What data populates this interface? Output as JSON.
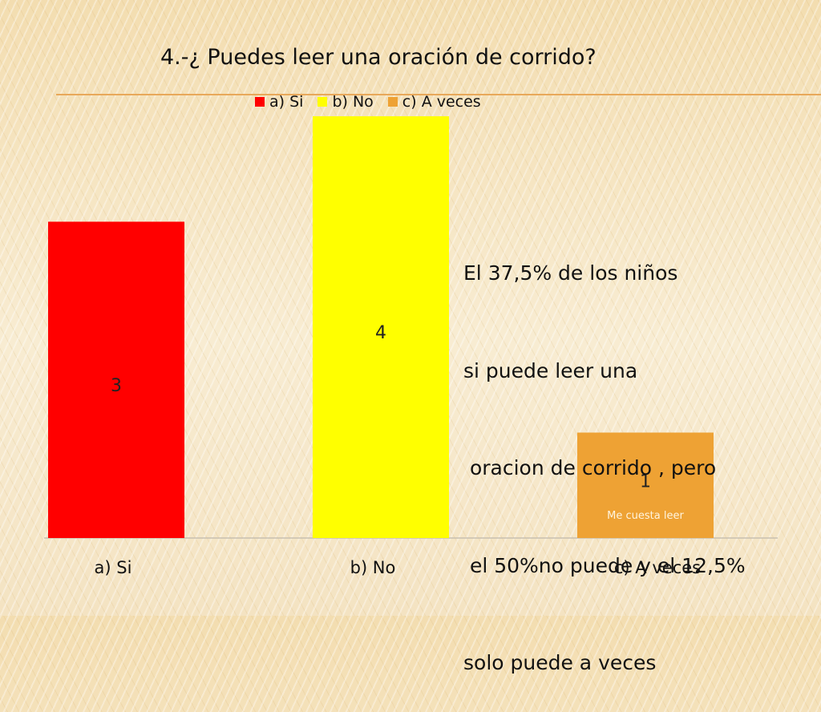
{
  "chart_data": {
    "type": "bar",
    "title": "4.-¿ Puedes leer una oración de corrido?",
    "categories": [
      "a) Si",
      "b) No",
      "c) A veces"
    ],
    "values": [
      3,
      4,
      1
    ],
    "colors": [
      "#ff0000",
      "#ffff00",
      "#eea234"
    ],
    "legend_position": "top",
    "legend": [
      "a) Si",
      "b) No",
      "c) A veces"
    ],
    "ylim": [
      0,
      4
    ],
    "grid": false,
    "data_labels": [
      "3",
      "4",
      "1"
    ],
    "bar_annotations": [
      "",
      "",
      "Me cuesta leer"
    ],
    "xlabel": "",
    "ylabel": ""
  },
  "note": {
    "lines": [
      "El 37,5% de los niños",
      "si puede leer una",
      " oracion de corrido , pero",
      " el 50%no puede y el 12,5%",
      "solo puede a veces"
    ]
  }
}
